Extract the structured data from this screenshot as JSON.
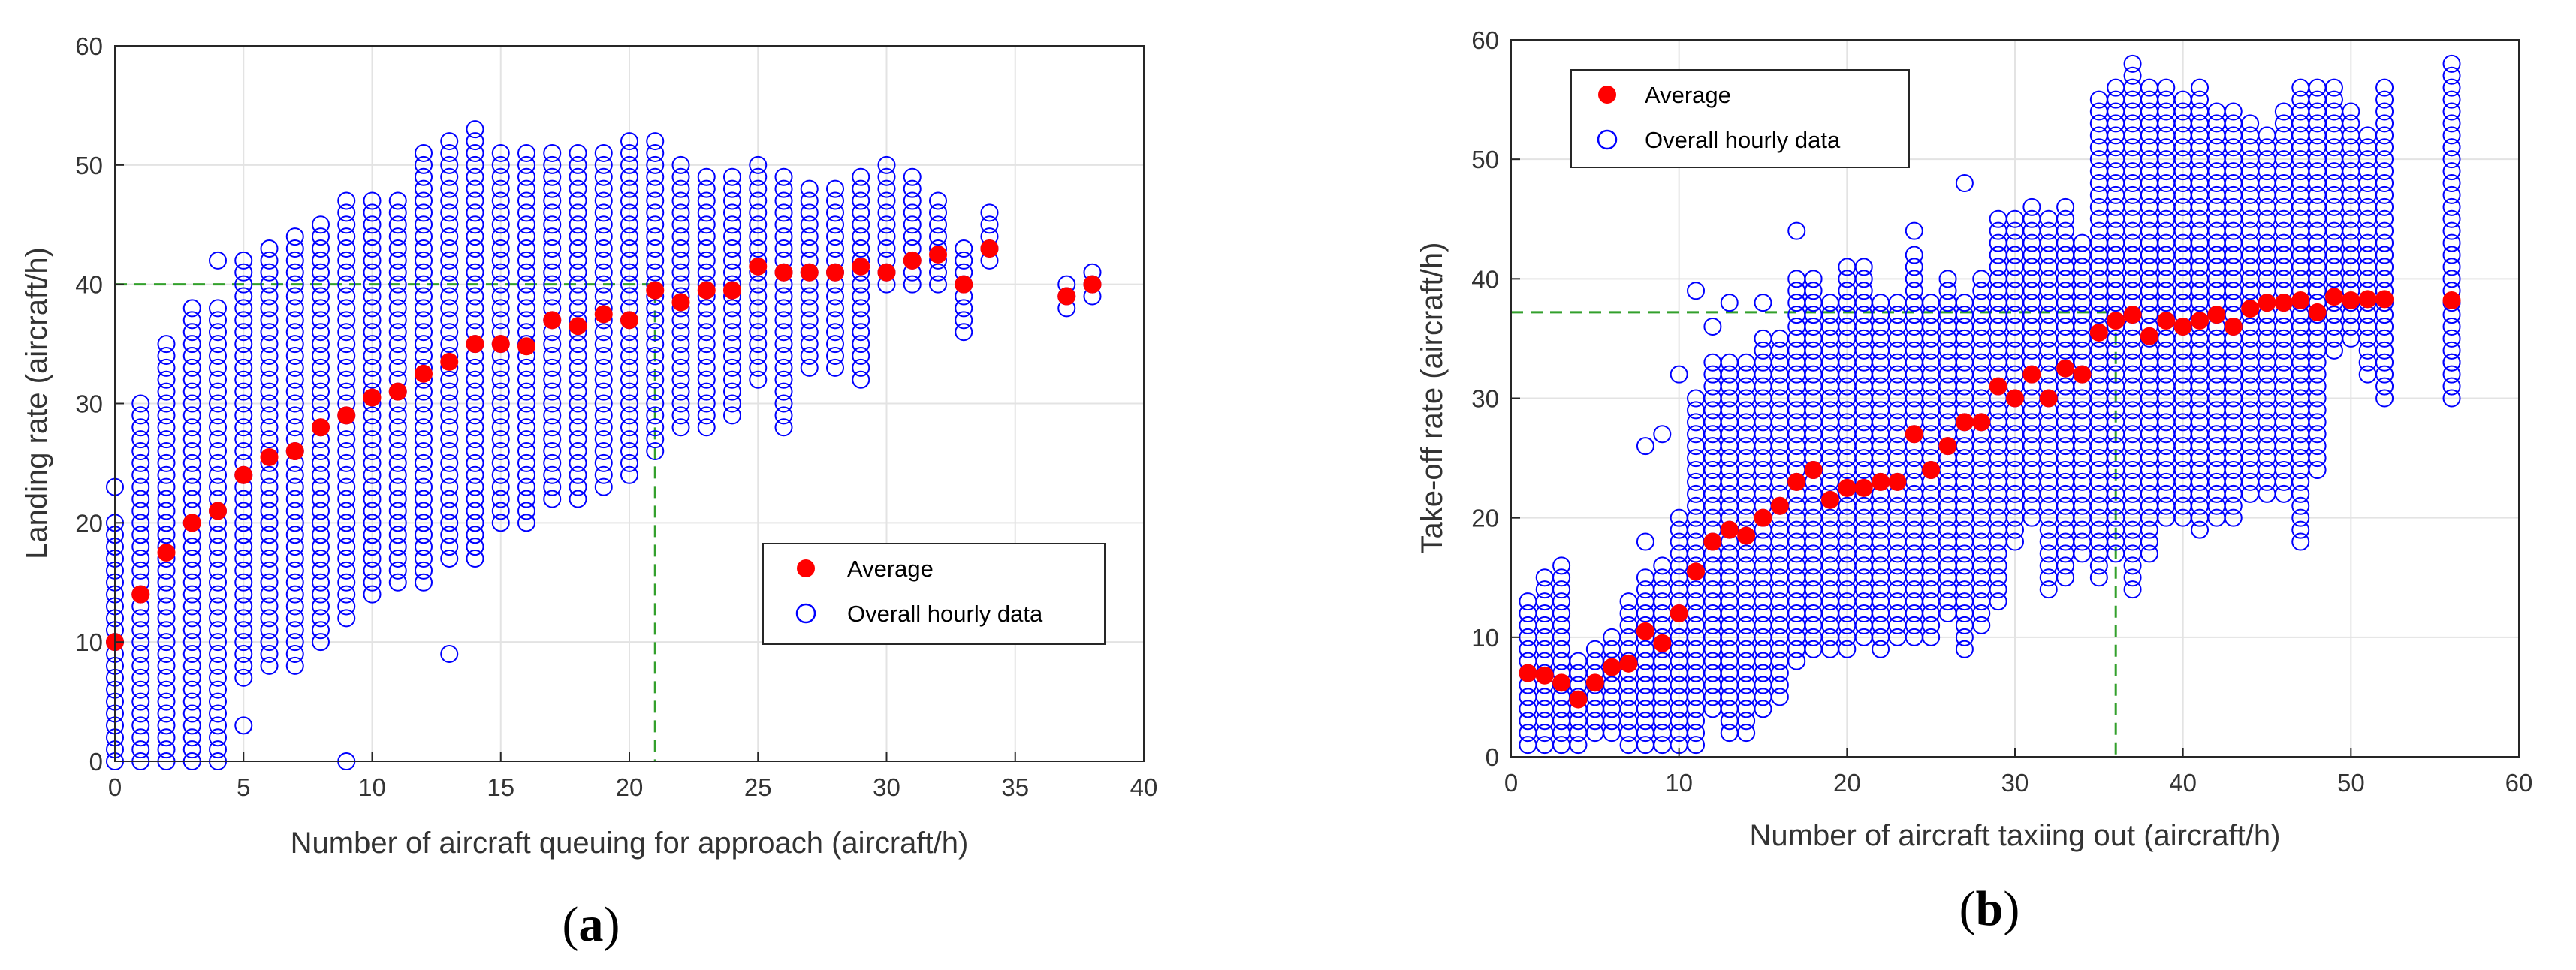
{
  "colors": {
    "overall": "#0000ff",
    "average": "#ff0000",
    "grid": "#e3e3e3",
    "axes": "#262626",
    "reference": "#33a02c"
  },
  "chart_data": [
    {
      "panel": "a",
      "type": "scatter",
      "xlabel": "Number of aircraft queuing for approach (aircraft/h)",
      "ylabel": "Landing rate (aircraft/h)",
      "xlim": [
        0,
        40
      ],
      "ylim": [
        0,
        60
      ],
      "xticks": [
        0,
        5,
        10,
        15,
        20,
        25,
        30,
        35,
        40
      ],
      "yticks": [
        0,
        10,
        20,
        30,
        40,
        50,
        60
      ],
      "grid": true,
      "legend": {
        "position": "lower-right",
        "entries": [
          "Average",
          "Overall hourly data"
        ]
      },
      "reference_lines": {
        "x": 21,
        "y": 40
      },
      "series": [
        {
          "name": "Overall hourly data",
          "marker": "open-circle",
          "columns": [
            {
              "x": 0,
              "low": 0,
              "high": 20,
              "extra": [
                23
              ]
            },
            {
              "x": 1,
              "low": 0,
              "high": 30
            },
            {
              "x": 2,
              "low": 0,
              "high": 35
            },
            {
              "x": 3,
              "low": 0,
              "high": 38
            },
            {
              "x": 4,
              "low": 0,
              "high": 38,
              "extra": [
                42
              ]
            },
            {
              "x": 5,
              "low": 7,
              "high": 42,
              "extra": [
                3
              ]
            },
            {
              "x": 6,
              "low": 8,
              "high": 43
            },
            {
              "x": 7,
              "low": 8,
              "high": 44
            },
            {
              "x": 8,
              "low": 10,
              "high": 45
            },
            {
              "x": 9,
              "low": 12,
              "high": 47,
              "extra": [
                0
              ]
            },
            {
              "x": 10,
              "low": 14,
              "high": 47
            },
            {
              "x": 11,
              "low": 15,
              "high": 47
            },
            {
              "x": 12,
              "low": 15,
              "high": 51
            },
            {
              "x": 13,
              "low": 17,
              "high": 52,
              "extra": [
                9
              ]
            },
            {
              "x": 14,
              "low": 17,
              "high": 53
            },
            {
              "x": 15,
              "low": 20,
              "high": 51
            },
            {
              "x": 16,
              "low": 20,
              "high": 51
            },
            {
              "x": 17,
              "low": 22,
              "high": 51
            },
            {
              "x": 18,
              "low": 22,
              "high": 51
            },
            {
              "x": 19,
              "low": 23,
              "high": 51
            },
            {
              "x": 20,
              "low": 24,
              "high": 52
            },
            {
              "x": 21,
              "low": 26,
              "high": 52
            },
            {
              "x": 22,
              "low": 28,
              "high": 50
            },
            {
              "x": 23,
              "low": 28,
              "high": 49
            },
            {
              "x": 24,
              "low": 29,
              "high": 49
            },
            {
              "x": 25,
              "low": 32,
              "high": 50
            },
            {
              "x": 26,
              "low": 28,
              "high": 49
            },
            {
              "x": 27,
              "low": 33,
              "high": 48
            },
            {
              "x": 28,
              "low": 33,
              "high": 48
            },
            {
              "x": 29,
              "low": 32,
              "high": 49
            },
            {
              "x": 30,
              "low": 40,
              "high": 50
            },
            {
              "x": 31,
              "low": 40,
              "high": 49
            },
            {
              "x": 32,
              "low": 40,
              "high": 47
            },
            {
              "x": 33,
              "low": 36,
              "high": 43
            },
            {
              "x": 34,
              "low": 42,
              "high": 46
            },
            {
              "x": 37,
              "low": 38,
              "high": 40
            },
            {
              "x": 38,
              "low": 39,
              "high": 41
            }
          ]
        },
        {
          "name": "Average",
          "marker": "filled-circle",
          "x": [
            0,
            1,
            2,
            3,
            4,
            5,
            6,
            7,
            8,
            9,
            10,
            11,
            12,
            13,
            14,
            15,
            16,
            17,
            18,
            19,
            20,
            21,
            22,
            23,
            24,
            25,
            26,
            27,
            28,
            29,
            30,
            31,
            32,
            33,
            34,
            37,
            38
          ],
          "y": [
            10,
            14,
            17.5,
            20,
            21,
            24,
            25.5,
            26,
            28,
            29,
            30.5,
            31,
            32.5,
            33.5,
            35,
            35,
            34.8,
            37,
            36.5,
            37.5,
            37,
            39.5,
            38.5,
            39.5,
            39.5,
            41.5,
            41,
            41,
            41,
            41.5,
            41,
            42,
            42.5,
            40,
            43,
            39,
            40
          ]
        }
      ]
    },
    {
      "panel": "b",
      "type": "scatter",
      "xlabel": "Number of aircraft taxiing out (aircraft/h)",
      "ylabel": "Take-off rate (aircraft/h)",
      "xlim": [
        0,
        60
      ],
      "ylim": [
        0,
        60
      ],
      "xticks": [
        0,
        10,
        20,
        30,
        40,
        50,
        60
      ],
      "yticks": [
        0,
        10,
        20,
        30,
        40,
        50,
        60
      ],
      "grid": true,
      "legend": {
        "position": "top-left",
        "entries": [
          "Average",
          "Overall hourly data"
        ]
      },
      "reference_lines": {
        "x": 36,
        "y": 37.2
      },
      "series": [
        {
          "name": "Overall hourly data",
          "marker": "open-circle",
          "columns": [
            {
              "x": 1,
              "low": 1,
              "high": 13
            },
            {
              "x": 2,
              "low": 1,
              "high": 15
            },
            {
              "x": 3,
              "low": 1,
              "high": 16
            },
            {
              "x": 4,
              "low": 1,
              "high": 8
            },
            {
              "x": 5,
              "low": 2,
              "high": 9
            },
            {
              "x": 6,
              "low": 2,
              "high": 10
            },
            {
              "x": 7,
              "low": 1,
              "high": 13
            },
            {
              "x": 8,
              "low": 1,
              "high": 15,
              "extra": [
                18,
                26
              ]
            },
            {
              "x": 9,
              "low": 1,
              "high": 16,
              "extra": [
                27
              ]
            },
            {
              "x": 10,
              "low": 1,
              "high": 20,
              "extra": [
                32
              ]
            },
            {
              "x": 11,
              "low": 1,
              "high": 30,
              "extra": [
                39
              ]
            },
            {
              "x": 12,
              "low": 4,
              "high": 33,
              "extra": [
                36
              ]
            },
            {
              "x": 13,
              "low": 2,
              "high": 33,
              "extra": [
                38
              ]
            },
            {
              "x": 14,
              "low": 2,
              "high": 33
            },
            {
              "x": 15,
              "low": 4,
              "high": 35,
              "extra": [
                38
              ]
            },
            {
              "x": 16,
              "low": 5,
              "high": 35
            },
            {
              "x": 17,
              "low": 8,
              "high": 40,
              "extra": [
                44
              ]
            },
            {
              "x": 18,
              "low": 9,
              "high": 40
            },
            {
              "x": 19,
              "low": 9,
              "high": 38
            },
            {
              "x": 20,
              "low": 9,
              "high": 41
            },
            {
              "x": 21,
              "low": 10,
              "high": 41
            },
            {
              "x": 22,
              "low": 9,
              "high": 38
            },
            {
              "x": 23,
              "low": 10,
              "high": 38
            },
            {
              "x": 24,
              "low": 10,
              "high": 42,
              "extra": [
                44
              ]
            },
            {
              "x": 25,
              "low": 10,
              "high": 38
            },
            {
              "x": 26,
              "low": 12,
              "high": 40
            },
            {
              "x": 27,
              "low": 9,
              "high": 38,
              "extra": [
                48
              ]
            },
            {
              "x": 28,
              "low": 11,
              "high": 40
            },
            {
              "x": 29,
              "low": 13,
              "high": 45
            },
            {
              "x": 30,
              "low": 18,
              "high": 45
            },
            {
              "x": 31,
              "low": 20,
              "high": 46
            },
            {
              "x": 32,
              "low": 14,
              "high": 45
            },
            {
              "x": 33,
              "low": 15,
              "high": 46
            },
            {
              "x": 34,
              "low": 17,
              "high": 43
            },
            {
              "x": 35,
              "low": 15,
              "high": 55
            },
            {
              "x": 36,
              "low": 17,
              "high": 56
            },
            {
              "x": 37,
              "low": 14,
              "high": 58
            },
            {
              "x": 38,
              "low": 17,
              "high": 56
            },
            {
              "x": 39,
              "low": 20,
              "high": 56
            },
            {
              "x": 40,
              "low": 20,
              "high": 55
            },
            {
              "x": 41,
              "low": 19,
              "high": 56
            },
            {
              "x": 42,
              "low": 20,
              "high": 54
            },
            {
              "x": 43,
              "low": 20,
              "high": 54
            },
            {
              "x": 44,
              "low": 22,
              "high": 53
            },
            {
              "x": 45,
              "low": 22,
              "high": 52
            },
            {
              "x": 46,
              "low": 22,
              "high": 54
            },
            {
              "x": 47,
              "low": 18,
              "high": 56
            },
            {
              "x": 48,
              "low": 24,
              "high": 56
            },
            {
              "x": 49,
              "low": 34,
              "high": 56
            },
            {
              "x": 50,
              "low": 35,
              "high": 54
            },
            {
              "x": 51,
              "low": 32,
              "high": 52,
              "extra": [
                49
              ]
            },
            {
              "x": 52,
              "low": 30,
              "high": 56
            },
            {
              "x": 56,
              "low": 30,
              "high": 58,
              "extra": [
                33,
                51
              ]
            }
          ]
        },
        {
          "name": "Average",
          "marker": "filled-circle",
          "x": [
            1,
            2,
            3,
            4,
            5,
            6,
            7,
            8,
            9,
            10,
            11,
            12,
            13,
            14,
            15,
            16,
            17,
            18,
            19,
            20,
            21,
            22,
            23,
            24,
            25,
            26,
            27,
            28,
            29,
            30,
            31,
            32,
            33,
            34,
            35,
            36,
            37,
            38,
            39,
            40,
            41,
            42,
            43,
            44,
            45,
            46,
            47,
            48,
            49,
            50,
            51,
            52,
            56
          ],
          "y": [
            7,
            6.8,
            6.2,
            4.8,
            6.2,
            7.5,
            7.8,
            10.5,
            9.5,
            12,
            15.5,
            18,
            19,
            18.5,
            20,
            21,
            23,
            24,
            21.5,
            22.5,
            22.5,
            23,
            23,
            27,
            24,
            26,
            28,
            28,
            31,
            30,
            32,
            30,
            32.5,
            32,
            35.5,
            36.5,
            37,
            35.2,
            36.5,
            36,
            36.5,
            37,
            36,
            37.5,
            38,
            38,
            38.2,
            37.2,
            38.5,
            38.2,
            38.3,
            38.3,
            38.2
          ]
        }
      ]
    }
  ],
  "figure": {
    "panel_labels": [
      {
        "open": "(",
        "letter": "a",
        "close": ")"
      },
      {
        "open": "(",
        "letter": "b",
        "close": ")"
      }
    ]
  }
}
